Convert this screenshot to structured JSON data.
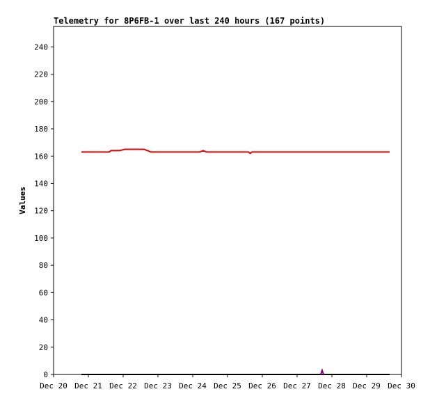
{
  "chart_data": {
    "type": "line",
    "title": "Telemetry for 8P6FB-1 over last 240 hours (167 points)",
    "y_label": "Values",
    "xlim": [
      20,
      30
    ],
    "xticks": [
      {
        "value": 20,
        "label": "Dec 20"
      },
      {
        "value": 21,
        "label": "Dec 21"
      },
      {
        "value": 22,
        "label": "Dec 22"
      },
      {
        "value": 23,
        "label": "Dec 23"
      },
      {
        "value": 24,
        "label": "Dec 24"
      },
      {
        "value": 25,
        "label": "Dec 25"
      },
      {
        "value": 26,
        "label": "Dec 26"
      },
      {
        "value": 27,
        "label": "Dec 27"
      },
      {
        "value": 28,
        "label": "Dec 28"
      },
      {
        "value": 29,
        "label": "Dec 29"
      },
      {
        "value": 30,
        "label": "Dec 30"
      }
    ],
    "ylim": [
      0,
      255
    ],
    "yticks": [
      0,
      20,
      40,
      60,
      80,
      100,
      120,
      140,
      160,
      180,
      200,
      220,
      240
    ],
    "series": [
      {
        "color": "#e00000",
        "x": [
          20.8,
          21.6,
          21.65,
          21.9,
          22.05,
          22.6,
          22.7,
          22.8,
          24.2,
          24.3,
          24.4,
          25.6,
          25.65,
          25.7,
          29.66
        ],
        "values": [
          163,
          163,
          164,
          164,
          165,
          165,
          164,
          163,
          163,
          164,
          163,
          163,
          162,
          163,
          163
        ]
      },
      {
        "color": "#000000",
        "x": [
          20.8,
          29.66
        ],
        "values": [
          0,
          0
        ]
      },
      {
        "color": "#800080",
        "x": [
          27.68,
          27.72,
          27.76
        ],
        "values": [
          0,
          3,
          0
        ]
      }
    ]
  }
}
